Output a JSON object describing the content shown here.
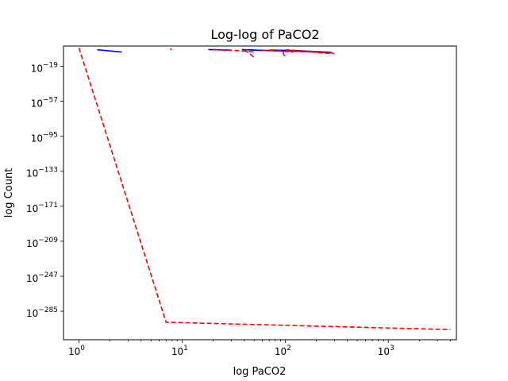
{
  "chart_data": {
    "type": "line",
    "title": "Log-log of PaCO2",
    "xlabel": "log PaCO2",
    "ylabel": "log Count",
    "xscale": "log",
    "yscale": "log",
    "xlim_log10": [
      -0.15,
      3.66
    ],
    "ylim_log10": [
      -316,
      3
    ],
    "grid": false,
    "x_ticks": [
      {
        "base": "10",
        "exp": "0",
        "value": 1
      },
      {
        "base": "10",
        "exp": "1",
        "value": 10
      },
      {
        "base": "10",
        "exp": "2",
        "value": 100
      },
      {
        "base": "10",
        "exp": "3",
        "value": 1000
      }
    ],
    "y_ticks": [
      {
        "base": "10",
        "exp": "−19",
        "value": -19
      },
      {
        "base": "10",
        "exp": "−57",
        "value": -57
      },
      {
        "base": "10",
        "exp": "−95",
        "value": -95
      },
      {
        "base": "10",
        "exp": "−133",
        "value": -133
      },
      {
        "base": "10",
        "exp": "−171",
        "value": -171
      },
      {
        "base": "10",
        "exp": "−209",
        "value": -209
      },
      {
        "base": "10",
        "exp": "−247",
        "value": -247
      },
      {
        "base": "10",
        "exp": "−285",
        "value": -285
      }
    ],
    "series": [
      {
        "color": "#0000ff",
        "dash": "solid",
        "segments": [
          [
            [
              1.5,
              -1.0
            ],
            [
              2.6,
              -3.5
            ]
          ],
          [
            [
              18,
              -0.8
            ],
            [
              30,
              -1.5
            ]
          ],
          [
            [
              38,
              -0.8
            ],
            [
              60,
              -1.8
            ],
            [
              100,
              -2.4
            ],
            [
              160,
              -3.2
            ],
            [
              250,
              -4.0
            ]
          ],
          [
            [
              45,
              -1.2
            ],
            [
              90,
              -2.2
            ],
            [
              140,
              -2.8
            ],
            [
              210,
              -3.6
            ],
            [
              270,
              -4.2
            ]
          ],
          [
            [
              70,
              -1.4
            ],
            [
              130,
              -2.0
            ],
            [
              200,
              -3.0
            ],
            [
              280,
              -3.8
            ]
          ]
        ]
      },
      {
        "color": "#ff0000",
        "dash": "dashed",
        "segments": [
          [
            [
              1.0,
              1.0
            ],
            [
              7.0,
              -297
            ],
            [
              4000,
              -305
            ]
          ],
          [
            [
              7.7,
              0.5
            ],
            [
              7.9,
              -1.5
            ]
          ],
          [
            [
              20,
              -0.8
            ],
            [
              35,
              -2.0
            ],
            [
              50,
              -3.5
            ]
          ],
          [
            [
              40,
              -1.2
            ],
            [
              45,
              -5.0
            ],
            [
              50,
              -9.5
            ]
          ],
          [
            [
              60,
              -1.5
            ],
            [
              90,
              -2.5
            ],
            [
              120,
              -3.5
            ]
          ],
          [
            [
              100,
              -1.0
            ],
            [
              150,
              -2.3
            ],
            [
              220,
              -3.5
            ],
            [
              290,
              -4.5
            ]
          ],
          [
            [
              110,
              -2.5
            ],
            [
              170,
              -3.0
            ],
            [
              230,
              -4.6
            ],
            [
              300,
              -5.2
            ]
          ],
          [
            [
              95,
              -3.2
            ],
            [
              97,
              -6.5
            ],
            [
              100,
              -8.0
            ]
          ]
        ]
      }
    ]
  }
}
